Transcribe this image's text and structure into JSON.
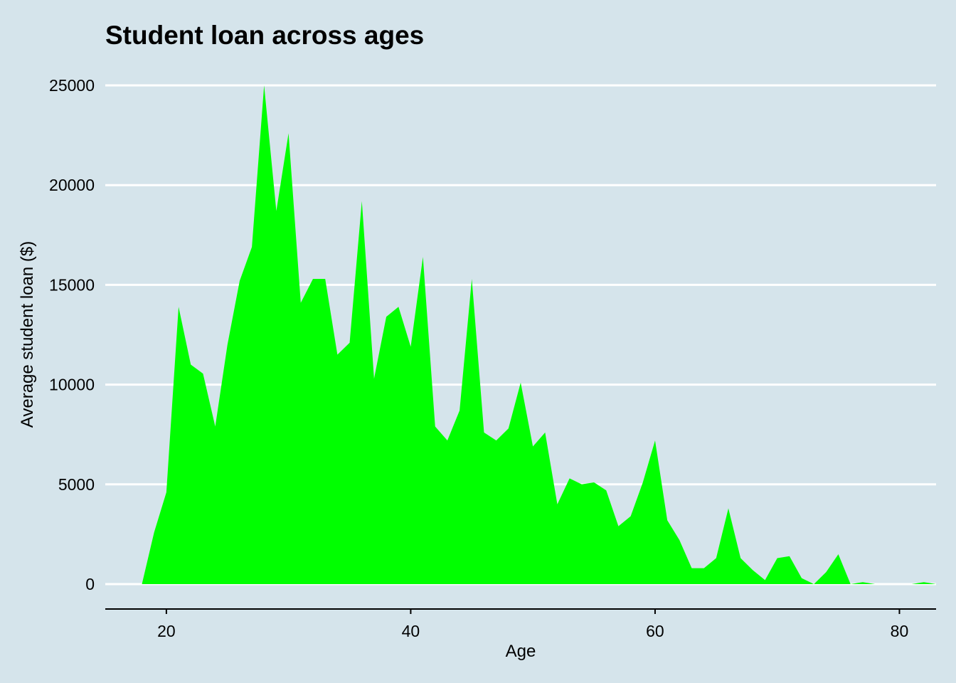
{
  "chart_data": {
    "type": "area",
    "title": "Student loan across ages",
    "xlabel": "Age",
    "ylabel": "Average student loan ($)",
    "xlim": [
      15,
      83
    ],
    "ylim": [
      -1200,
      25000
    ],
    "x_ticks": [
      20,
      40,
      60,
      80
    ],
    "y_ticks": [
      0,
      5000,
      10000,
      15000,
      20000,
      25000
    ],
    "grid": "horizontal major gridlines, white",
    "legend": "none",
    "colors": {
      "background": "#d5e4eb",
      "fill": "#00ff00",
      "grid": "#ffffff",
      "axis": "#000000"
    },
    "series": [
      {
        "x": [
          18,
          19,
          20,
          21,
          22,
          23,
          24,
          25,
          26,
          27,
          28,
          29,
          30,
          31,
          32,
          33,
          34,
          35,
          36,
          37,
          38,
          39,
          40,
          41,
          42,
          43,
          44,
          45,
          46,
          47,
          48,
          49,
          50,
          51,
          52,
          53,
          54,
          55,
          56,
          57,
          58,
          59,
          60,
          61,
          62,
          63,
          64,
          65,
          66,
          67,
          68,
          69,
          70,
          71,
          72,
          73,
          74,
          75,
          76,
          77,
          78,
          79,
          80,
          81,
          82,
          83
        ],
        "values": [
          0,
          2600,
          4600,
          13900,
          11000,
          10550,
          7900,
          12000,
          15200,
          16900,
          25000,
          18700,
          22600,
          14100,
          15300,
          15300,
          11500,
          12100,
          19200,
          10300,
          13400,
          13900,
          11900,
          16400,
          7900,
          7200,
          8700,
          15300,
          7600,
          7200,
          7800,
          10100,
          6900,
          7600,
          4000,
          5300,
          5000,
          5100,
          4700,
          2900,
          3400,
          5100,
          7200,
          3200,
          2200,
          800,
          800,
          1300,
          3800,
          1300,
          700,
          200,
          1300,
          1400,
          300,
          0,
          600,
          1500,
          0,
          100,
          0,
          0,
          0,
          0,
          100,
          0
        ]
      }
    ]
  }
}
